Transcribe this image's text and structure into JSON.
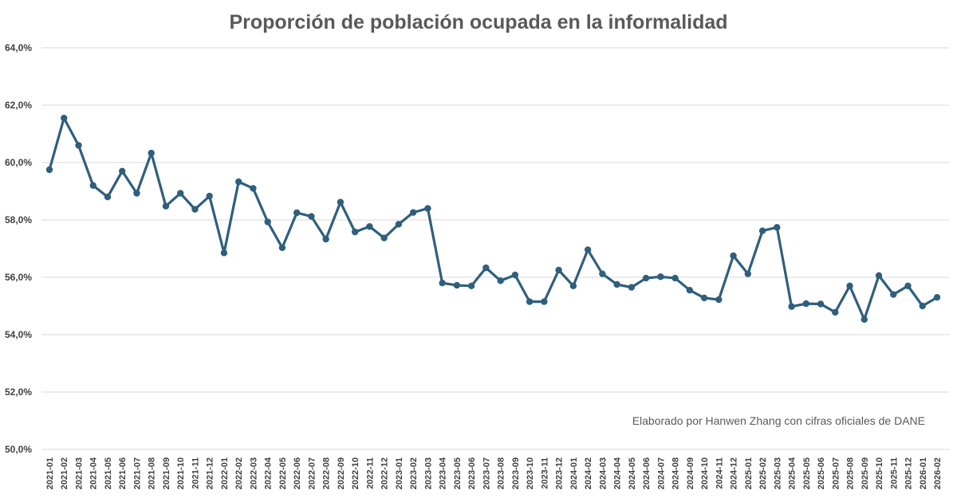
{
  "chart_data": {
    "type": "line",
    "title": "Proporción de población ocupada en la informalidad",
    "annotation": "Elaborado por Hanwen Zhang con cifras oficiales de DANE",
    "xlabel": "",
    "ylabel": "",
    "ylim": [
      50,
      64
    ],
    "yticks": [
      64,
      62,
      60,
      58,
      56,
      54,
      52,
      50
    ],
    "ytick_labels": [
      "64,0%",
      "62,0%",
      "60,0%",
      "58,0%",
      "56,0%",
      "54,0%",
      "52,0%",
      "50,0%"
    ],
    "grid": true,
    "legend": "none",
    "series_color": "#2f5f7c",
    "categories": [
      "2021-01",
      "2021-02",
      "2021-03",
      "2021-04",
      "2021-05",
      "2021-06",
      "2021-07",
      "2021-08",
      "2021-09",
      "2021-10",
      "2021-11",
      "2021-12",
      "2022-01",
      "2022-02",
      "2022-03",
      "2022-04",
      "2022-05",
      "2022-06",
      "2022-07",
      "2022-08",
      "2022-09",
      "2022-10",
      "2022-11",
      "2022-12",
      "2023-01",
      "2023-02",
      "2023-03",
      "2023-04",
      "2023-05",
      "2023-06",
      "2023-07",
      "2023-08",
      "2023-09",
      "2023-10",
      "2023-11",
      "2023-12",
      "2024-01",
      "2024-02",
      "2024-03",
      "2024-04",
      "2024-05",
      "2024-06",
      "2024-07",
      "2024-08",
      "2024-09",
      "2024-10",
      "2024-11",
      "2024-12",
      "2025-01",
      "2025-02",
      "2025-03",
      "2025-04",
      "2025-05",
      "2025-06",
      "2025-07",
      "2025-08",
      "2025-09",
      "2025-10",
      "2025-11",
      "2025-12",
      "2026-01",
      "2026-02"
    ],
    "series": [
      {
        "name": "Proporción de población ocupada en la informalidad",
        "values": [
          59.75,
          61.55,
          60.6,
          59.2,
          58.8,
          59.7,
          58.93,
          60.33,
          58.48,
          58.93,
          58.37,
          58.83,
          56.85,
          59.33,
          59.1,
          57.93,
          57.03,
          58.25,
          58.12,
          57.33,
          58.62,
          57.58,
          57.77,
          57.37,
          57.85,
          58.26,
          58.4,
          55.8,
          55.72,
          55.7,
          56.33,
          55.88,
          56.08,
          55.15,
          55.15,
          56.25,
          55.7,
          56.96,
          56.12,
          55.75,
          55.65,
          55.97,
          56.02,
          55.97,
          55.55,
          55.28,
          55.22,
          56.75,
          56.12,
          57.62,
          57.74,
          54.98,
          55.08,
          55.07,
          54.78,
          55.7,
          54.53,
          56.06,
          55.4,
          55.7,
          55.0,
          55.3
        ]
      }
    ]
  }
}
